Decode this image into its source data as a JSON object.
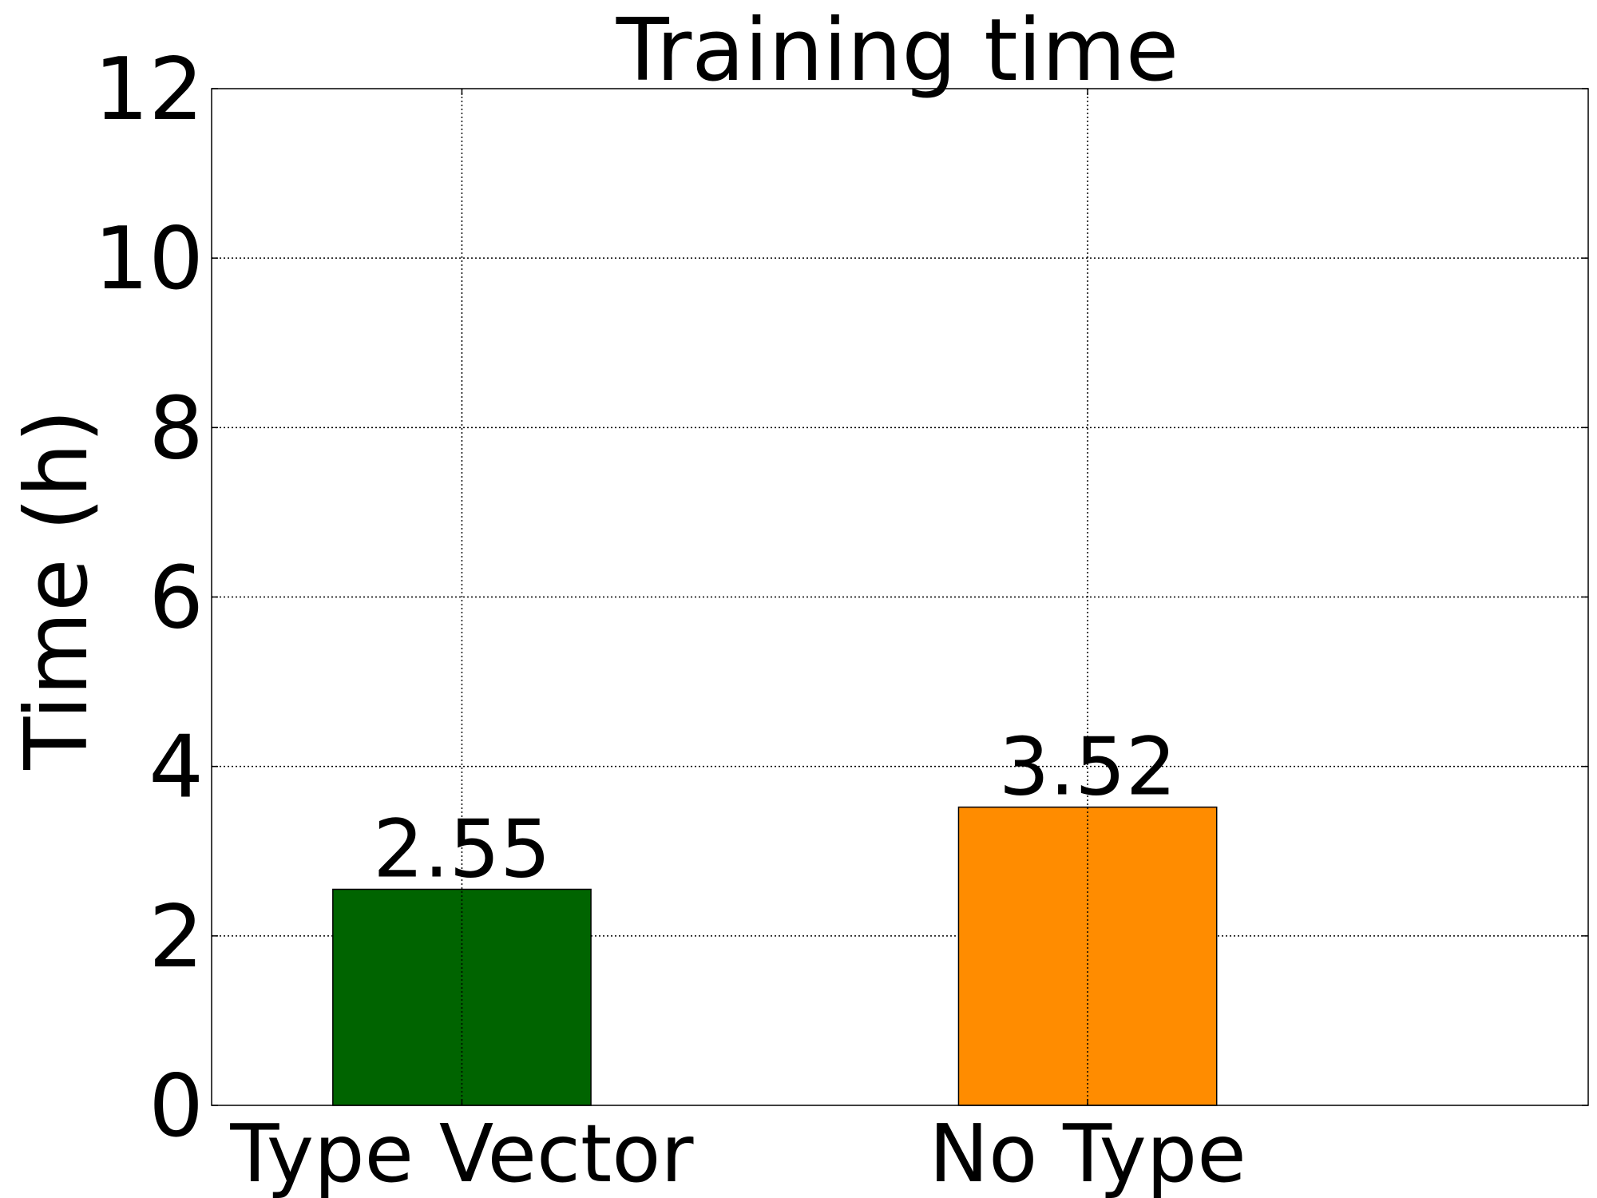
{
  "chart_data": {
    "type": "bar",
    "title": "Training time",
    "xlabel": "",
    "ylabel": "Time (h)",
    "ylim": [
      0,
      12
    ],
    "yticks": [
      0,
      2,
      4,
      6,
      8,
      10,
      12
    ],
    "categories": [
      "Type Vector",
      "No Type"
    ],
    "values": [
      2.55,
      3.52
    ],
    "data_labels": [
      "2.55",
      "3.52"
    ],
    "colors": [
      "#006400",
      "#FF8C00"
    ],
    "grid": true,
    "legend": "none"
  }
}
